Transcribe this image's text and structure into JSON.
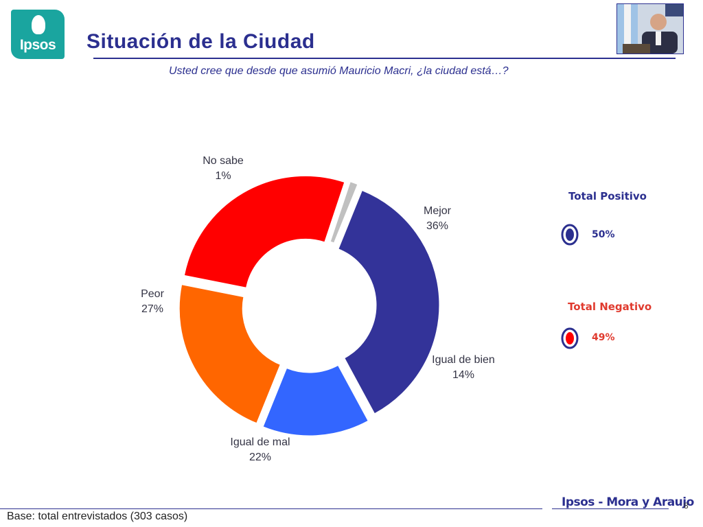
{
  "brand": {
    "logo_text": "Ipsos",
    "footer": "Ipsos - Mora y Araujo"
  },
  "title": "Situación de la Ciudad",
  "subtitle": "Usted cree que desde que asumió Mauricio Macri, ¿la ciudad está…?",
  "chart_data": {
    "type": "pie",
    "variant": "donut",
    "title": "Situación de la Ciudad",
    "categories": [
      "Mejor",
      "Igual de bien",
      "Igual de mal",
      "Peor",
      "No sabe"
    ],
    "values": [
      36,
      14,
      22,
      27,
      1
    ],
    "labels": [
      "36%",
      "14%",
      "22%",
      "27%",
      "1%"
    ],
    "colors": [
      "#333399",
      "#3366ff",
      "#ff6600",
      "#ff0000",
      "#c0c0c0"
    ],
    "unit": "%"
  },
  "totals": {
    "positive": {
      "label": "Total Positivo",
      "value": "50%",
      "color": "#2b2f8f"
    },
    "negative": {
      "label": "Total Negativo",
      "value": "49%",
      "color": "#e03a2e"
    }
  },
  "footer": {
    "base": "Base: total entrevistados (303 casos)",
    "page": "8"
  }
}
